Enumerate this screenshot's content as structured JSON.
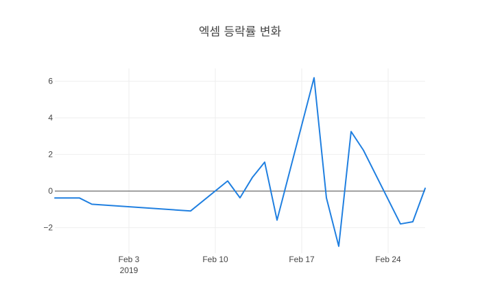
{
  "chart_data": {
    "type": "line",
    "title": "엑셈 등락률 변화",
    "xlabel": "",
    "ylabel": "",
    "x": [
      "2019-01-28",
      "2019-01-29",
      "2019-01-30",
      "2019-01-31",
      "2019-02-08",
      "2019-02-11",
      "2019-02-12",
      "2019-02-13",
      "2019-02-14",
      "2019-02-15",
      "2019-02-18",
      "2019-02-19",
      "2019-02-20",
      "2019-02-21",
      "2019-02-22",
      "2019-02-25",
      "2019-02-26",
      "2019-02-27"
    ],
    "series": [
      {
        "values": [
          -0.38,
          -0.38,
          -0.38,
          -0.72,
          -1.09,
          0.55,
          -0.37,
          0.74,
          1.58,
          -1.59,
          6.19,
          -0.37,
          -3.02,
          3.25,
          2.23,
          -1.8,
          -1.68,
          0.15
        ]
      }
    ],
    "xlim": [
      "2019-01-28",
      "2019-02-27"
    ],
    "ylim": [
      -3.4,
      6.7
    ],
    "x_ticks": [
      {
        "date": "2019-02-03",
        "label": "Feb 3",
        "sublabel": "2019"
      },
      {
        "date": "2019-02-10",
        "label": "Feb 10",
        "sublabel": ""
      },
      {
        "date": "2019-02-17",
        "label": "Feb 17",
        "sublabel": ""
      },
      {
        "date": "2019-02-24",
        "label": "Feb 24",
        "sublabel": ""
      }
    ],
    "y_ticks": [
      {
        "value": 6,
        "label": "6"
      },
      {
        "value": 4,
        "label": "4"
      },
      {
        "value": 2,
        "label": "2"
      },
      {
        "value": 0,
        "label": "0"
      },
      {
        "value": -2,
        "label": "−2"
      }
    ],
    "grid": true,
    "legend": "none",
    "colors": {
      "line": "#1f7fe0",
      "grid": "#eeeeee",
      "zero_line": "#444444"
    }
  }
}
